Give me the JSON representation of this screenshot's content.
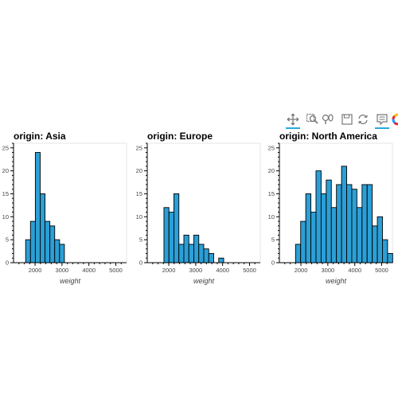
{
  "toolbar": {
    "tools": [
      {
        "icon": "pan-icon",
        "active": true
      },
      {
        "icon": "box-zoom-icon",
        "active": false
      },
      {
        "icon": "wheel-zoom-icon",
        "active": false
      },
      {
        "icon": "save-icon",
        "active": false
      },
      {
        "icon": "reset-icon",
        "active": false
      },
      {
        "icon": "hover-icon",
        "active": true
      },
      {
        "icon": "bokeh-logo-icon",
        "active": false
      }
    ]
  },
  "chart_data": [
    {
      "type": "bar",
      "title": "origin: Asia",
      "xlabel": "weight",
      "ylabel": "",
      "xlim": [
        1200,
        5400
      ],
      "ylim": [
        0,
        26
      ],
      "xticks": [
        2000,
        3000,
        4000,
        5000
      ],
      "yticks": [
        0,
        5,
        10,
        15,
        20,
        25
      ],
      "bins": [
        {
          "x0": 1650,
          "x1": 1830,
          "y": 5
        },
        {
          "x0": 1830,
          "x1": 2010,
          "y": 9
        },
        {
          "x0": 2010,
          "x1": 2190,
          "y": 24
        },
        {
          "x0": 2190,
          "x1": 2370,
          "y": 15
        },
        {
          "x0": 2370,
          "x1": 2550,
          "y": 9
        },
        {
          "x0": 2550,
          "x1": 2730,
          "y": 8
        },
        {
          "x0": 2730,
          "x1": 2910,
          "y": 5
        },
        {
          "x0": 2910,
          "x1": 3090,
          "y": 4
        }
      ],
      "bar_color": "#2b9fd6"
    },
    {
      "type": "bar",
      "title": "origin: Europe",
      "xlabel": "weight",
      "ylabel": "",
      "xlim": [
        1200,
        5400
      ],
      "ylim": [
        0,
        26
      ],
      "xticks": [
        2000,
        3000,
        4000,
        5000
      ],
      "yticks": [
        0,
        5,
        10,
        15,
        20,
        25
      ],
      "bins": [
        {
          "x0": 1820,
          "x1": 2005,
          "y": 12
        },
        {
          "x0": 2005,
          "x1": 2190,
          "y": 11
        },
        {
          "x0": 2190,
          "x1": 2375,
          "y": 15
        },
        {
          "x0": 2375,
          "x1": 2560,
          "y": 4
        },
        {
          "x0": 2560,
          "x1": 2745,
          "y": 6
        },
        {
          "x0": 2745,
          "x1": 2930,
          "y": 4
        },
        {
          "x0": 2930,
          "x1": 3115,
          "y": 6
        },
        {
          "x0": 3115,
          "x1": 3300,
          "y": 4
        },
        {
          "x0": 3300,
          "x1": 3485,
          "y": 3
        },
        {
          "x0": 3485,
          "x1": 3670,
          "y": 2
        },
        {
          "x0": 3670,
          "x1": 3855,
          "y": 0
        },
        {
          "x0": 3855,
          "x1": 4040,
          "y": 1
        }
      ],
      "bar_color": "#2b9fd6"
    },
    {
      "type": "bar",
      "title": "origin: North America",
      "xlabel": "weight",
      "ylabel": "",
      "xlim": [
        1200,
        5400
      ],
      "ylim": [
        0,
        26
      ],
      "xticks": [
        2000,
        3000,
        4000,
        5000
      ],
      "yticks": [
        0,
        5,
        10,
        15,
        20,
        25
      ],
      "bins": [
        {
          "x0": 1800,
          "x1": 1990,
          "y": 4
        },
        {
          "x0": 1990,
          "x1": 2180,
          "y": 9
        },
        {
          "x0": 2180,
          "x1": 2370,
          "y": 15
        },
        {
          "x0": 2370,
          "x1": 2560,
          "y": 11
        },
        {
          "x0": 2560,
          "x1": 2750,
          "y": 20
        },
        {
          "x0": 2750,
          "x1": 2940,
          "y": 15
        },
        {
          "x0": 2940,
          "x1": 3130,
          "y": 18
        },
        {
          "x0": 3130,
          "x1": 3320,
          "y": 12
        },
        {
          "x0": 3320,
          "x1": 3510,
          "y": 17
        },
        {
          "x0": 3510,
          "x1": 3700,
          "y": 21
        },
        {
          "x0": 3700,
          "x1": 3890,
          "y": 17
        },
        {
          "x0": 3890,
          "x1": 4080,
          "y": 16
        },
        {
          "x0": 4080,
          "x1": 4270,
          "y": 12
        },
        {
          "x0": 4270,
          "x1": 4460,
          "y": 17
        },
        {
          "x0": 4460,
          "x1": 4650,
          "y": 17
        },
        {
          "x0": 4650,
          "x1": 4840,
          "y": 8
        },
        {
          "x0": 4840,
          "x1": 5030,
          "y": 10
        },
        {
          "x0": 5030,
          "x1": 5220,
          "y": 5
        },
        {
          "x0": 5220,
          "x1": 5410,
          "y": 2
        }
      ],
      "bar_color": "#2b9fd6"
    }
  ]
}
